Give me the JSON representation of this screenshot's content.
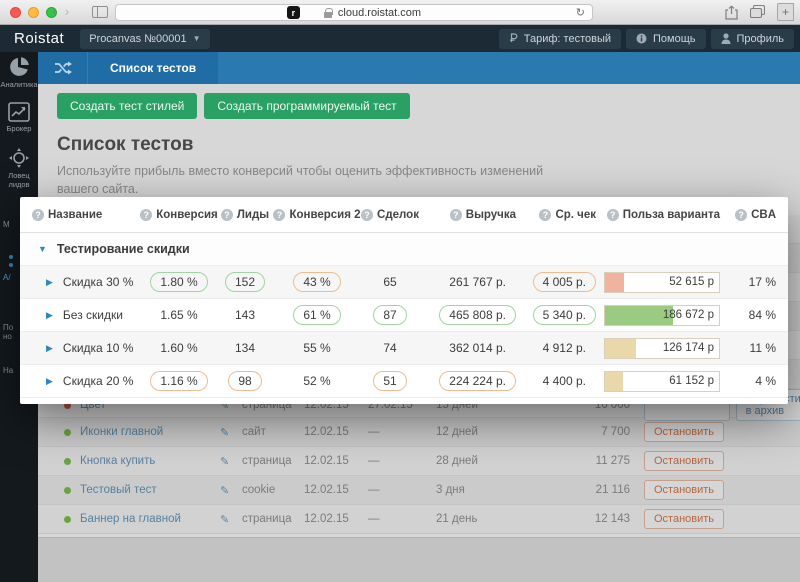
{
  "browser": {
    "url": "cloud.roistat.com",
    "favicon_letter": "r"
  },
  "navbar": {
    "logo": "Roistat",
    "project": "Procanvas №00001",
    "tariff": "Тариф: тестовый",
    "help": "Помощь",
    "profile": "Профиль"
  },
  "sidebar": {
    "items": [
      {
        "label": "Аналитика"
      },
      {
        "label": "Брокер"
      },
      {
        "label": "Ловец лидов"
      }
    ],
    "fragments": [
      "М",
      "А/",
      "По",
      "но",
      "На"
    ]
  },
  "tabs": {
    "active": "Список тестов"
  },
  "toolbar": {
    "create_style_test": "Создать тест стилей",
    "create_programmable_test": "Создать программируемый тест"
  },
  "page": {
    "title": "Список тестов",
    "description": "Используйте прибыль вместо конверсий чтобы оценить эффективность изменений вашего сайта."
  },
  "results_table": {
    "columns": [
      "Название",
      "Конверсия",
      "Лиды",
      "Конверсия 2",
      "Сделок",
      "Выручка",
      "Ср. чек",
      "Польза варианта",
      "CBA"
    ],
    "group": "Тестирование скидки",
    "rows": [
      {
        "name": "Скидка 30 %",
        "conversion": {
          "v": "1.80 %",
          "b": "green"
        },
        "leads": {
          "v": "152",
          "b": "green"
        },
        "conversion2": {
          "v": "43 %",
          "b": "orange"
        },
        "deals": {
          "v": "65",
          "b": "none"
        },
        "revenue": {
          "v": "261 767 р.",
          "b": "none"
        },
        "avg_check": {
          "v": "4 005 р.",
          "b": "orange"
        },
        "benefit": {
          "v": "52 615 р",
          "pct": 17,
          "color": "#efb3a0"
        },
        "cba": "17 %"
      },
      {
        "name": "Без скидки",
        "conversion": {
          "v": "1.65 %",
          "b": "none"
        },
        "leads": {
          "v": "143",
          "b": "none"
        },
        "conversion2": {
          "v": "61 %",
          "b": "green"
        },
        "deals": {
          "v": "87",
          "b": "green"
        },
        "revenue": {
          "v": "465 808 р.",
          "b": "green"
        },
        "avg_check": {
          "v": "5 340 р.",
          "b": "green"
        },
        "benefit": {
          "v": "186 672 р",
          "pct": 60,
          "color": "#9bcb83"
        },
        "cba": "84 %"
      },
      {
        "name": "Скидка 10 %",
        "conversion": {
          "v": "1.60 %",
          "b": "none"
        },
        "leads": {
          "v": "134",
          "b": "none"
        },
        "conversion2": {
          "v": "55 %",
          "b": "none"
        },
        "deals": {
          "v": "74",
          "b": "none"
        },
        "revenue": {
          "v": "362 014 р.",
          "b": "none"
        },
        "avg_check": {
          "v": "4 912 р.",
          "b": "none"
        },
        "benefit": {
          "v": "126 174 р",
          "pct": 27,
          "color": "#e9d8a9"
        },
        "cba": "11 %"
      },
      {
        "name": "Скидка 20 %",
        "conversion": {
          "v": "1.16 %",
          "b": "orange"
        },
        "leads": {
          "v": "98",
          "b": "orange"
        },
        "conversion2": {
          "v": "52 %",
          "b": "none"
        },
        "deals": {
          "v": "51",
          "b": "orange"
        },
        "revenue": {
          "v": "224 224 р.",
          "b": "orange"
        },
        "avg_check": {
          "v": "4 400 р.",
          "b": "none"
        },
        "benefit": {
          "v": "61 152 р",
          "pct": 16,
          "color": "#e9d8a9"
        },
        "cba": "4 %"
      }
    ]
  },
  "background_table": {
    "rows": [
      {
        "dot": "red",
        "name": "Цвет",
        "type": "страница",
        "start": "12.02.15",
        "end": "27.02.15",
        "duration": "15 дней",
        "visitors": "16 000",
        "actions": [
          {
            "label": "Возобновить",
            "variant": "blue"
          },
          {
            "label": "Перенести в архив",
            "variant": "blue"
          }
        ]
      },
      {
        "dot": "green",
        "name": "Иконки главной",
        "type": "сайт",
        "start": "12.02.15",
        "end": "—",
        "duration": "12 дней",
        "visitors": "7 700",
        "actions": [
          {
            "label": "Остановить",
            "variant": "orange"
          }
        ]
      },
      {
        "dot": "green",
        "name": "Кнопка купить",
        "type": "страница",
        "start": "12.02.15",
        "end": "—",
        "duration": "28 дней",
        "visitors": "11 275",
        "actions": [
          {
            "label": "Остановить",
            "variant": "orange"
          }
        ]
      },
      {
        "dot": "green",
        "name": "Тестовый тест",
        "type": "cookie",
        "start": "12.02.15",
        "end": "—",
        "duration": "3 дня",
        "visitors": "21 116",
        "actions": [
          {
            "label": "Остановить",
            "variant": "orange"
          }
        ]
      },
      {
        "dot": "green",
        "name": "Баннер на главной",
        "type": "страница",
        "start": "12.02.15",
        "end": "—",
        "duration": "21 день",
        "visitors": "12 143",
        "actions": [
          {
            "label": "Остановить",
            "variant": "orange"
          }
        ]
      }
    ]
  }
}
